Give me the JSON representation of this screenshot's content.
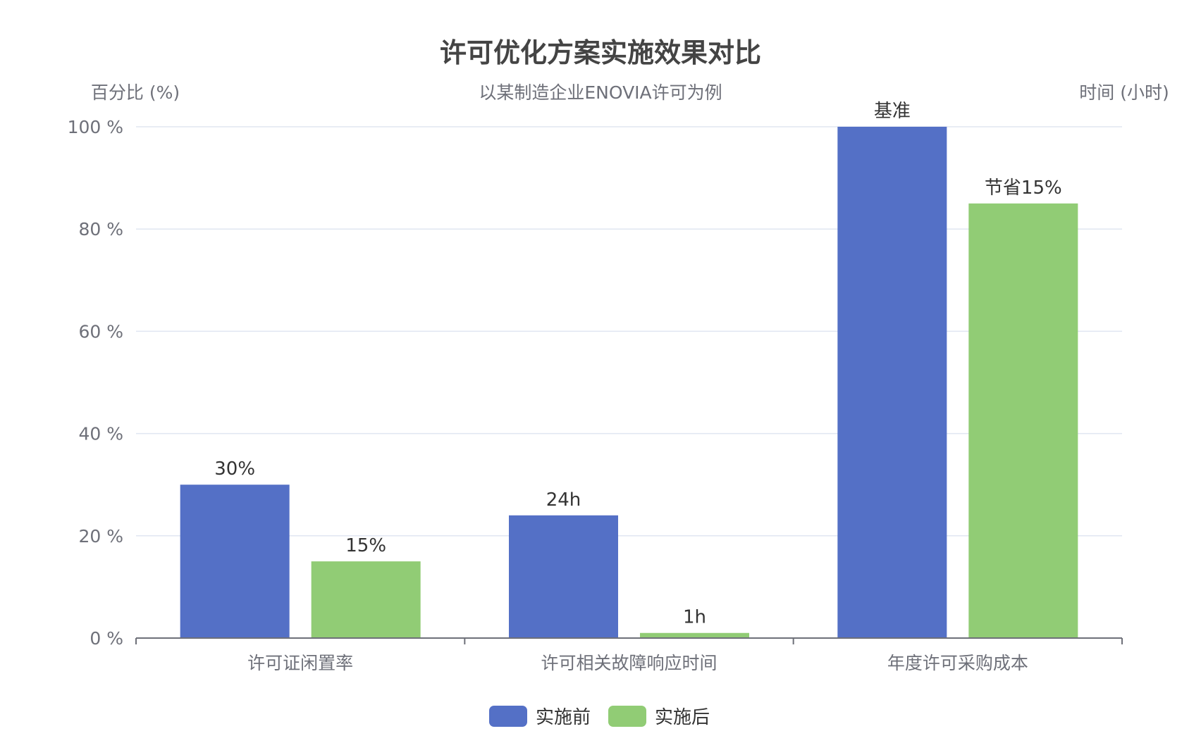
{
  "chart_data": {
    "type": "bar",
    "title": "许可优化方案实施效果对比",
    "subtitle": "以某制造企业ENOVIA许可为例",
    "ylabel_left": "百分比 (%)",
    "ylabel_right": "时间 (小时)",
    "categories": [
      "许可证闲置率",
      "许可相关故障响应时间",
      "年度许可采购成本"
    ],
    "ylim": [
      0,
      100
    ],
    "yticks": [
      0,
      20,
      40,
      60,
      80,
      100
    ],
    "ytick_labels": [
      "0 %",
      "20 %",
      "40 %",
      "60 %",
      "80 %",
      "100 %"
    ],
    "grid": true,
    "legend_position": "bottom-center",
    "series": [
      {
        "name": "实施前",
        "color": "#5470c6",
        "values": [
          30,
          24,
          100
        ],
        "labels": [
          "30%",
          "24h",
          "基准"
        ]
      },
      {
        "name": "实施后",
        "color": "#91cc75",
        "values": [
          15,
          1,
          85
        ],
        "labels": [
          "15%",
          "1h",
          "节省15%"
        ]
      }
    ]
  }
}
